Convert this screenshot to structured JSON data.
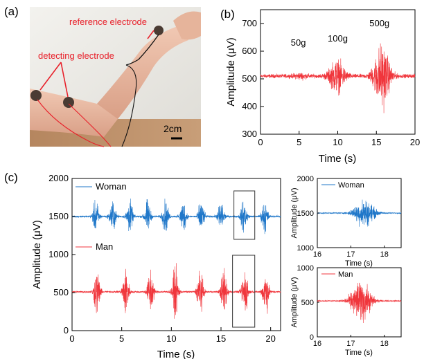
{
  "panels": {
    "a": "(a)",
    "b": "(b)",
    "c": "(c)"
  },
  "photo": {
    "reference_label": "reference electrode",
    "detecting_label": "detecting electrode",
    "scale_label": "2cm"
  },
  "colors": {
    "red_signal": "#f0363c",
    "blue_signal": "#1f77c9",
    "annotation_red": "#e8202a"
  },
  "chart_data": [
    {
      "id": "b",
      "type": "line",
      "xlabel": "Time (s)",
      "ylabel": "Amplitude (μV)",
      "xlim": [
        0,
        20
      ],
      "ylim": [
        300,
        750
      ],
      "xticks": [
        0,
        5,
        10,
        15,
        20
      ],
      "yticks": [
        300,
        400,
        500,
        600,
        700
      ],
      "baseline": 510,
      "annotations": [
        {
          "text": "50g",
          "x": 4.9,
          "y": 620
        },
        {
          "text": "100g",
          "x": 10.0,
          "y": 635
        },
        {
          "text": "500g",
          "x": 15.4,
          "y": 690
        }
      ],
      "bursts": [
        {
          "center": 5.2,
          "halfwidth": 1.4,
          "peak": 520
        },
        {
          "center": 9.9,
          "halfwidth": 1.6,
          "peak": 590
        },
        {
          "center": 15.7,
          "halfwidth": 1.6,
          "peak": 670
        }
      ],
      "series": [
        {
          "values_note": "",
          "color": "#f0363c"
        }
      ]
    },
    {
      "id": "c-main",
      "type": "line",
      "xlabel": "Time (s)",
      "ylabel": "Amplitude (μV)",
      "xlim": [
        0,
        21
      ],
      "ylim": [
        0,
        2000
      ],
      "xticks": [
        0,
        5,
        10,
        15,
        20
      ],
      "yticks": [
        0,
        500,
        1000,
        1500,
        2000
      ],
      "series": [
        {
          "name": "Woman",
          "color": "#1f77c9",
          "baseline": 1500,
          "bursts": [
            2.4,
            4.1,
            5.8,
            7.6,
            9.4,
            11.2,
            13.0,
            15.0,
            17.3,
            19.4
          ],
          "amplitude": 300
        },
        {
          "name": "Man",
          "color": "#f0363c",
          "baseline": 510,
          "bursts": [
            2.5,
            5.4,
            7.9,
            10.4,
            12.9,
            15.3,
            17.4,
            19.5
          ],
          "amplitude": 440
        }
      ],
      "highlight_box": [
        16.3,
        18.4
      ]
    },
    {
      "id": "c-inset-woman",
      "type": "line",
      "xlabel": "Time (s)",
      "ylabel": "Amplitude (μV)",
      "xlim": [
        16,
        18.5
      ],
      "ylim": [
        1000,
        2000
      ],
      "xticks": [
        16,
        17,
        18
      ],
      "yticks": [
        1000,
        1500,
        2000
      ],
      "series": [
        {
          "name": "Woman",
          "color": "#1f77c9",
          "baseline": 1500,
          "bursts": [
            17.4
          ],
          "amplitude": 280
        }
      ]
    },
    {
      "id": "c-inset-man",
      "type": "line",
      "xlabel": "Time (s)",
      "ylabel": "Amplitude (μV)",
      "xlim": [
        16,
        18.5
      ],
      "ylim": [
        0,
        1000
      ],
      "xticks": [
        16,
        17,
        18
      ],
      "yticks": [
        0,
        500,
        1000
      ],
      "series": [
        {
          "name": "Man",
          "color": "#f0363c",
          "baseline": 520,
          "bursts": [
            17.3
          ],
          "amplitude": 420
        }
      ]
    }
  ]
}
